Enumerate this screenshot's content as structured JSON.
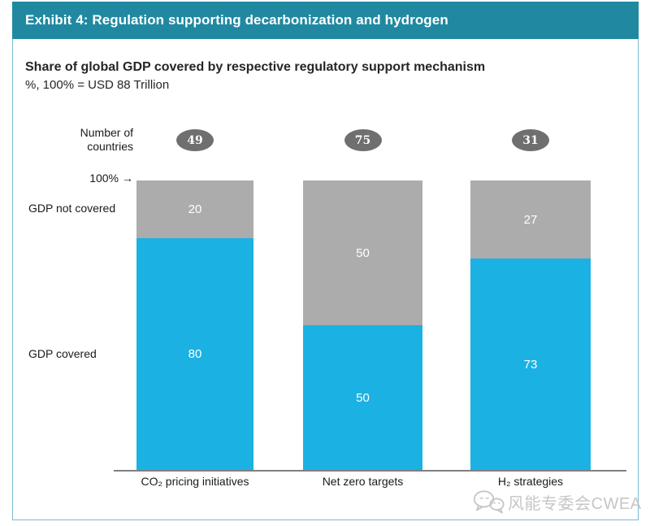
{
  "header": {
    "title": "Exhibit 4: Regulation supporting decarbonization and hydrogen"
  },
  "labels": {
    "number_of": "Number of",
    "countries": "countries",
    "hundred_percent": "100%",
    "arrow_glyph": "→",
    "gdp_not_covered": "GDP not covered",
    "gdp_covered": "GDP covered"
  },
  "watermark": {
    "icon": "wechat-icon",
    "text": "风能专委会CWEA"
  },
  "colors": {
    "header_bar": "#2089A1",
    "frame_border": "#79BCD2",
    "covered_blue": "#1CB1E3",
    "not_covered_gray": "#ACACAC",
    "country_badge_gray": "#6F6F6F",
    "axis_line": "#7F7F7F",
    "watermark_gray": "#C6C6C6",
    "bar_value_text": "#FFFFFF"
  },
  "chart_data": {
    "type": "bar",
    "stacked": true,
    "title": "Share of global GDP covered by respective regulatory support mechanism",
    "subtitle": "%, 100% = USD 88 Trillion",
    "categories": [
      "CO₂ pricing initiatives",
      "Net zero targets",
      "H₂ strategies"
    ],
    "countries_per_category": [
      49,
      75,
      31
    ],
    "series": [
      {
        "name": "GDP covered",
        "values": [
          80,
          50,
          73
        ],
        "color": "#1CB1E3"
      },
      {
        "name": "GDP not covered",
        "values": [
          20,
          50,
          27
        ],
        "color": "#ACACAC"
      }
    ],
    "ylim": [
      0,
      100
    ],
    "grid": false,
    "legend_position": "row-labels-left",
    "annotation_100_percent": "100%"
  }
}
